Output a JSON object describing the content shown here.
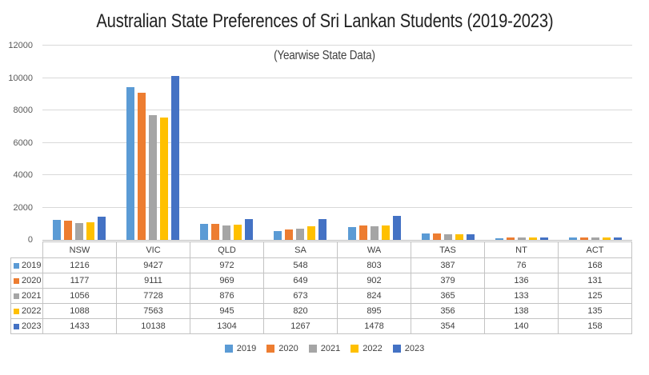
{
  "chart_data": {
    "type": "bar",
    "title": "Australian State Preferences of Sri Lankan Students (2019-2023)",
    "subtitle": "(Yearwise State Data)",
    "categories": [
      "NSW",
      "VIC",
      "QLD",
      "SA",
      "WA",
      "TAS",
      "NT",
      "ACT"
    ],
    "series": [
      {
        "name": "2019",
        "color": "#5B9BD5",
        "values": [
          1216,
          9427,
          972,
          548,
          803,
          387,
          76,
          168
        ]
      },
      {
        "name": "2020",
        "color": "#ED7D31",
        "values": [
          1177,
          9111,
          969,
          649,
          902,
          379,
          136,
          131
        ]
      },
      {
        "name": "2021",
        "color": "#A5A5A5",
        "values": [
          1056,
          7728,
          876,
          673,
          824,
          365,
          133,
          125
        ]
      },
      {
        "name": "2022",
        "color": "#FFC000",
        "values": [
          1088,
          7563,
          945,
          820,
          895,
          356,
          138,
          135
        ]
      },
      {
        "name": "2023",
        "color": "#4472C4",
        "values": [
          1433,
          10138,
          1304,
          1267,
          1478,
          354,
          140,
          158
        ]
      }
    ],
    "ylim": [
      0,
      12000
    ],
    "yticks": [
      0,
      2000,
      4000,
      6000,
      8000,
      10000,
      12000
    ],
    "grid": true,
    "legend_position": "bottom",
    "data_table_shown": true,
    "colors": {
      "gridline": "#d9d9d9",
      "axis_line": "#bfbfbf",
      "table_border": "#c3c3c3",
      "axis_label_text": "#595959",
      "table_text": "#404040",
      "title_text": "#212121"
    }
  }
}
